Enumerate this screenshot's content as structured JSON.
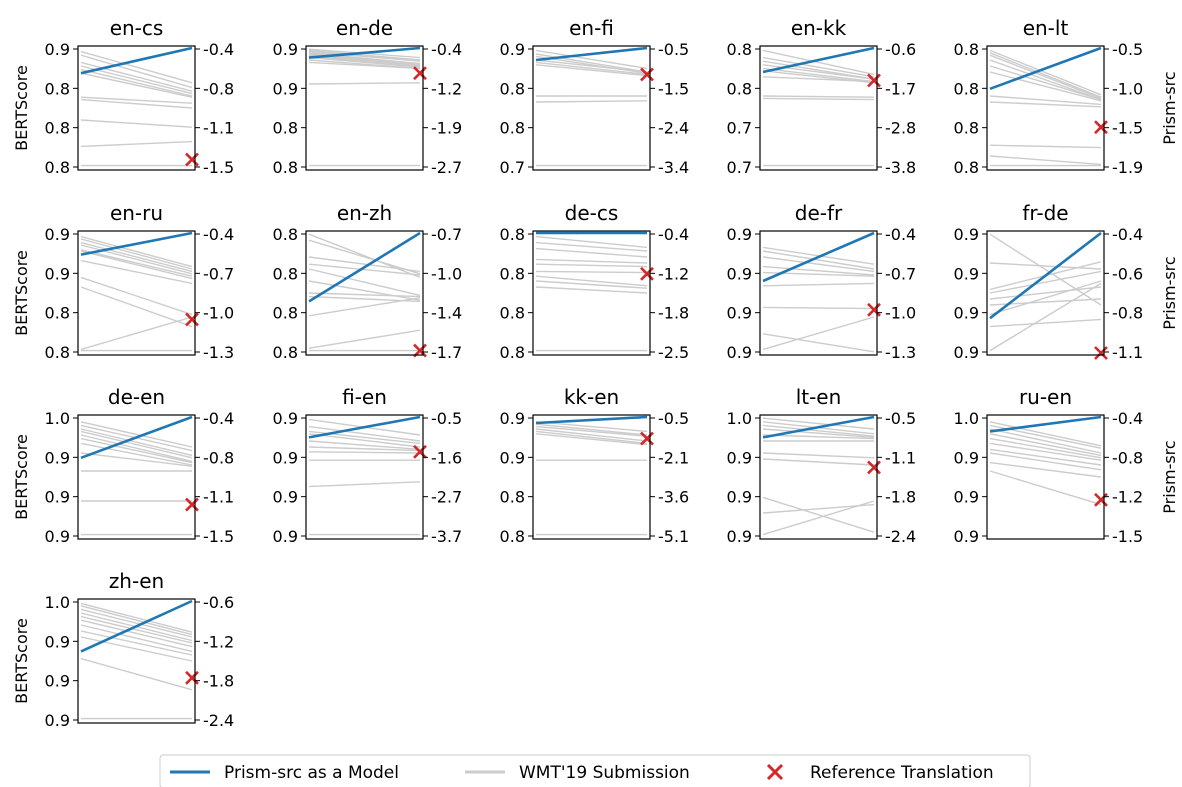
{
  "legend": {
    "placement": "bottom-center",
    "model_label": "Prism-src as a Model",
    "submission_label": "WMT'19 Submission",
    "reference_label": "Reference Translation"
  },
  "colors": {
    "model": "#1f77b4",
    "submission": "#cccccc",
    "reference": "#d62728"
  },
  "chart_data": [
    {
      "type": "line",
      "title": "en-cs",
      "ylabel": "BERTScore",
      "y2label": "",
      "left_ticks": [
        "0.9",
        "0.8",
        "0.8",
        "0.8"
      ],
      "right_ticks": [
        "-0.4",
        "-0.8",
        "-1.1",
        "-1.5"
      ],
      "ylim": [
        0,
        1
      ],
      "model": [
        0.79,
        1.0
      ],
      "reference": 0.07,
      "submissions": [
        [
          0.97,
          0.71
        ],
        [
          0.94,
          0.67
        ],
        [
          0.88,
          0.64
        ],
        [
          0.85,
          0.62
        ],
        [
          0.82,
          0.6
        ],
        [
          0.79,
          0.59
        ],
        [
          0.59,
          0.54
        ],
        [
          0.57,
          0.5
        ],
        [
          0.4,
          0.34
        ],
        [
          0.18,
          0.22
        ],
        [
          0.02,
          0.02
        ]
      ]
    },
    {
      "type": "line",
      "title": "en-de",
      "ylabel": "",
      "y2label": "",
      "left_ticks": [
        "0.9",
        "0.9",
        "0.8",
        "0.8"
      ],
      "right_ticks": [
        "-0.4",
        "-1.2",
        "-1.9",
        "-2.7"
      ],
      "ylim": [
        0,
        1
      ],
      "model": [
        0.92,
        1.0
      ],
      "reference": 0.79,
      "submissions": [
        [
          0.99,
          0.92
        ],
        [
          0.98,
          0.9
        ],
        [
          0.97,
          0.89
        ],
        [
          0.96,
          0.87
        ],
        [
          0.95,
          0.86
        ],
        [
          0.94,
          0.86
        ],
        [
          0.93,
          0.85
        ],
        [
          0.92,
          0.84
        ],
        [
          0.9,
          0.83
        ],
        [
          0.88,
          0.83
        ],
        [
          0.7,
          0.71
        ],
        [
          0.02,
          0.02
        ]
      ]
    },
    {
      "type": "line",
      "title": "en-fi",
      "ylabel": "",
      "y2label": "",
      "left_ticks": [
        "0.9",
        "0.8",
        "0.8",
        "0.7"
      ],
      "right_ticks": [
        "-0.5",
        "-1.5",
        "-2.4",
        "-3.4"
      ],
      "ylim": [
        0,
        1
      ],
      "model": [
        0.9,
        1.0
      ],
      "reference": 0.78,
      "submissions": [
        [
          0.98,
          0.83
        ],
        [
          0.95,
          0.8
        ],
        [
          0.93,
          0.79
        ],
        [
          0.9,
          0.8
        ],
        [
          0.88,
          0.78
        ],
        [
          0.86,
          0.77
        ],
        [
          0.6,
          0.6
        ],
        [
          0.55,
          0.56
        ],
        [
          0.02,
          0.02
        ]
      ]
    },
    {
      "type": "line",
      "title": "en-kk",
      "ylabel": "",
      "y2label": "",
      "left_ticks": [
        "0.8",
        "0.8",
        "0.7",
        "0.7"
      ],
      "right_ticks": [
        "-0.6",
        "-1.7",
        "-2.8",
        "-3.8"
      ],
      "ylim": [
        0,
        1
      ],
      "model": [
        0.8,
        1.0
      ],
      "reference": 0.73,
      "submissions": [
        [
          0.98,
          0.78
        ],
        [
          0.92,
          0.76
        ],
        [
          0.89,
          0.74
        ],
        [
          0.86,
          0.74
        ],
        [
          0.83,
          0.72
        ],
        [
          0.81,
          0.71
        ],
        [
          0.76,
          0.72
        ],
        [
          0.6,
          0.59
        ],
        [
          0.58,
          0.57
        ],
        [
          0.02,
          0.02
        ]
      ]
    },
    {
      "type": "line",
      "title": "en-lt",
      "ylabel": "",
      "y2label": "Prism-src",
      "left_ticks": [
        "0.8",
        "0.8",
        "0.8",
        "0.8"
      ],
      "right_ticks": [
        "-0.5",
        "-1.0",
        "-1.5",
        "-1.9"
      ],
      "ylim": [
        0,
        1
      ],
      "model": [
        0.66,
        1.0
      ],
      "reference": 0.34,
      "submissions": [
        [
          0.98,
          0.61
        ],
        [
          0.96,
          0.59
        ],
        [
          0.94,
          0.58
        ],
        [
          0.9,
          0.57
        ],
        [
          0.85,
          0.57
        ],
        [
          0.8,
          0.56
        ],
        [
          0.6,
          0.53
        ],
        [
          0.55,
          0.51
        ],
        [
          0.19,
          0.17
        ],
        [
          0.1,
          0.03
        ],
        [
          0.02,
          0.02
        ]
      ]
    },
    {
      "type": "line",
      "title": "en-ru",
      "ylabel": "BERTScore",
      "y2label": "",
      "left_ticks": [
        "0.9",
        "0.9",
        "0.8",
        "0.8"
      ],
      "right_ticks": [
        "-0.4",
        "-0.7",
        "-1.0",
        "-1.3"
      ],
      "ylim": [
        0,
        1
      ],
      "model": [
        0.82,
        1.0
      ],
      "reference": 0.28,
      "submissions": [
        [
          0.97,
          0.72
        ],
        [
          0.95,
          0.7
        ],
        [
          0.92,
          0.68
        ],
        [
          0.9,
          0.66
        ],
        [
          0.86,
          0.64
        ],
        [
          0.85,
          0.62
        ],
        [
          0.77,
          0.58
        ],
        [
          0.63,
          0.32
        ],
        [
          0.55,
          0.22
        ],
        [
          0.03,
          0.3
        ],
        [
          0.02,
          0.02
        ]
      ]
    },
    {
      "type": "line",
      "title": "en-zh",
      "ylabel": "",
      "y2label": "",
      "left_ticks": [
        "0.8",
        "0.8",
        "0.8",
        "0.8"
      ],
      "right_ticks": [
        "-0.7",
        "-1.0",
        "-1.4",
        "-1.7"
      ],
      "ylim": [
        0,
        1
      ],
      "model": [
        0.43,
        1.0
      ],
      "reference": 0.02,
      "submissions": [
        [
          0.99,
          0.63
        ],
        [
          0.94,
          0.66
        ],
        [
          0.8,
          0.68
        ],
        [
          0.74,
          0.65
        ],
        [
          0.7,
          0.48
        ],
        [
          0.6,
          0.44
        ],
        [
          0.5,
          0.47
        ],
        [
          0.47,
          0.43
        ],
        [
          0.31,
          0.46
        ],
        [
          0.04,
          0.19
        ],
        [
          0.02,
          0.02
        ]
      ]
    },
    {
      "type": "line",
      "title": "de-cs",
      "ylabel": "",
      "y2label": "",
      "left_ticks": [
        "0.8",
        "0.8",
        "0.8",
        "0.8"
      ],
      "right_ticks": [
        "-0.4",
        "-1.2",
        "-1.8",
        "-2.5"
      ],
      "ylim": [
        0,
        1
      ],
      "model": [
        1.0,
        1.0
      ],
      "reference": 0.66,
      "submissions": [
        [
          0.97,
          0.88
        ],
        [
          0.92,
          0.85
        ],
        [
          0.87,
          0.8
        ],
        [
          0.78,
          0.75
        ],
        [
          0.74,
          0.72
        ],
        [
          0.68,
          0.67
        ],
        [
          0.64,
          0.56
        ],
        [
          0.6,
          0.54
        ],
        [
          0.55,
          0.5
        ],
        [
          0.02,
          0.02
        ]
      ]
    },
    {
      "type": "line",
      "title": "de-fr",
      "ylabel": "",
      "y2label": "",
      "left_ticks": [
        "0.9",
        "0.9",
        "0.9",
        "0.9"
      ],
      "right_ticks": [
        "-0.4",
        "-0.7",
        "-1.0",
        "-1.3"
      ],
      "ylim": [
        0,
        1
      ],
      "model": [
        0.6,
        1.0
      ],
      "reference": 0.36,
      "submissions": [
        [
          0.88,
          0.74
        ],
        [
          0.85,
          0.7
        ],
        [
          0.8,
          0.68
        ],
        [
          0.72,
          0.65
        ],
        [
          0.67,
          0.64
        ],
        [
          0.56,
          0.58
        ],
        [
          0.38,
          0.37
        ],
        [
          0.16,
          0.01
        ],
        [
          0.03,
          0.3
        ]
      ]
    },
    {
      "type": "line",
      "title": "fr-de",
      "ylabel": "",
      "y2label": "Prism-src",
      "left_ticks": [
        "0.9",
        "0.9",
        "0.9",
        "0.9"
      ],
      "right_ticks": [
        "-0.4",
        "-0.6",
        "-0.8",
        "-1.1"
      ],
      "ylim": [
        0,
        1
      ],
      "model": [
        0.29,
        1.0
      ],
      "reference": 0.0,
      "submissions": [
        [
          0.99,
          0.4
        ],
        [
          0.75,
          0.7
        ],
        [
          0.53,
          0.76
        ],
        [
          0.5,
          0.68
        ],
        [
          0.45,
          0.55
        ],
        [
          0.4,
          0.45
        ],
        [
          0.32,
          0.6
        ],
        [
          0.22,
          0.28
        ],
        [
          0.02,
          0.58
        ]
      ]
    },
    {
      "type": "line",
      "title": "de-en",
      "ylabel": "BERTScore",
      "y2label": "",
      "left_ticks": [
        "1.0",
        "0.9",
        "0.9",
        "0.9"
      ],
      "right_ticks": [
        "-0.4",
        "-0.8",
        "-1.1",
        "-1.5"
      ],
      "ylim": [
        0,
        1
      ],
      "model": [
        0.66,
        1.0
      ],
      "reference": 0.27,
      "submissions": [
        [
          0.96,
          0.75
        ],
        [
          0.93,
          0.72
        ],
        [
          0.9,
          0.68
        ],
        [
          0.88,
          0.66
        ],
        [
          0.85,
          0.63
        ],
        [
          0.82,
          0.62
        ],
        [
          0.78,
          0.6
        ],
        [
          0.7,
          0.59
        ],
        [
          0.55,
          0.55
        ],
        [
          0.3,
          0.3
        ],
        [
          0.02,
          0.02
        ]
      ]
    },
    {
      "type": "line",
      "title": "fi-en",
      "ylabel": "",
      "y2label": "",
      "left_ticks": [
        "0.9",
        "0.9",
        "0.9",
        "0.9"
      ],
      "right_ticks": [
        "-0.5",
        "-1.6",
        "-2.7",
        "-3.7"
      ],
      "ylim": [
        0,
        1
      ],
      "model": [
        0.83,
        1.0
      ],
      "reference": 0.71,
      "submissions": [
        [
          0.98,
          0.85
        ],
        [
          0.92,
          0.8
        ],
        [
          0.88,
          0.78
        ],
        [
          0.86,
          0.75
        ],
        [
          0.8,
          0.73
        ],
        [
          0.75,
          0.72
        ],
        [
          0.71,
          0.7
        ],
        [
          0.64,
          0.64
        ],
        [
          0.42,
          0.46
        ],
        [
          0.02,
          0.02
        ]
      ]
    },
    {
      "type": "line",
      "title": "kk-en",
      "ylabel": "",
      "y2label": "",
      "left_ticks": [
        "0.9",
        "0.9",
        "0.8",
        "0.8"
      ],
      "right_ticks": [
        "-0.5",
        "-2.1",
        "-3.6",
        "-5.1"
      ],
      "ylim": [
        0,
        1
      ],
      "model": [
        0.95,
        1.0
      ],
      "reference": 0.82,
      "submissions": [
        [
          0.96,
          0.88
        ],
        [
          0.94,
          0.85
        ],
        [
          0.92,
          0.84
        ],
        [
          0.9,
          0.8
        ],
        [
          0.88,
          0.78
        ],
        [
          0.86,
          0.77
        ],
        [
          0.64,
          0.64
        ],
        [
          0.02,
          0.02
        ]
      ]
    },
    {
      "type": "line",
      "title": "lt-en",
      "ylabel": "",
      "y2label": "",
      "left_ticks": [
        "1.0",
        "0.9",
        "0.9",
        "0.9"
      ],
      "right_ticks": [
        "-0.5",
        "-1.1",
        "-1.8",
        "-2.4"
      ],
      "ylim": [
        0,
        1
      ],
      "model": [
        0.83,
        1.0
      ],
      "reference": 0.58,
      "submissions": [
        [
          0.99,
          0.9
        ],
        [
          0.96,
          0.86
        ],
        [
          0.93,
          0.84
        ],
        [
          0.9,
          0.83
        ],
        [
          0.85,
          0.82
        ],
        [
          0.8,
          0.8
        ],
        [
          0.7,
          0.66
        ],
        [
          0.65,
          0.6
        ],
        [
          0.33,
          0.04
        ],
        [
          0.2,
          0.27
        ],
        [
          0.02,
          0.3
        ]
      ]
    },
    {
      "type": "line",
      "title": "ru-en",
      "ylabel": "",
      "y2label": "Prism-src",
      "left_ticks": [
        "1.0",
        "0.9",
        "0.9",
        "0.9"
      ],
      "right_ticks": [
        "-0.4",
        "-0.8",
        "-1.2",
        "-1.5"
      ],
      "ylim": [
        0,
        1
      ],
      "model": [
        0.88,
        1.0
      ],
      "reference": 0.31,
      "submissions": [
        [
          0.96,
          0.76
        ],
        [
          0.93,
          0.74
        ],
        [
          0.9,
          0.7
        ],
        [
          0.86,
          0.68
        ],
        [
          0.82,
          0.66
        ],
        [
          0.78,
          0.64
        ],
        [
          0.73,
          0.6
        ],
        [
          0.7,
          0.56
        ],
        [
          0.62,
          0.5
        ],
        [
          0.55,
          0.27
        ]
      ]
    },
    {
      "type": "line",
      "title": "zh-en",
      "ylabel": "BERTScore",
      "y2label": "",
      "left_ticks": [
        "1.0",
        "0.9",
        "0.9",
        "0.9"
      ],
      "right_ticks": [
        "-0.6",
        "-1.2",
        "-1.8",
        "-2.4"
      ],
      "ylim": [
        0,
        1
      ],
      "model": [
        0.58,
        1.0
      ],
      "reference": 0.36,
      "submissions": [
        [
          0.98,
          0.74
        ],
        [
          0.96,
          0.72
        ],
        [
          0.93,
          0.7
        ],
        [
          0.9,
          0.67
        ],
        [
          0.87,
          0.65
        ],
        [
          0.84,
          0.62
        ],
        [
          0.8,
          0.58
        ],
        [
          0.75,
          0.55
        ],
        [
          0.7,
          0.5
        ],
        [
          0.52,
          0.26
        ],
        [
          0.02,
          0.02
        ]
      ]
    }
  ]
}
